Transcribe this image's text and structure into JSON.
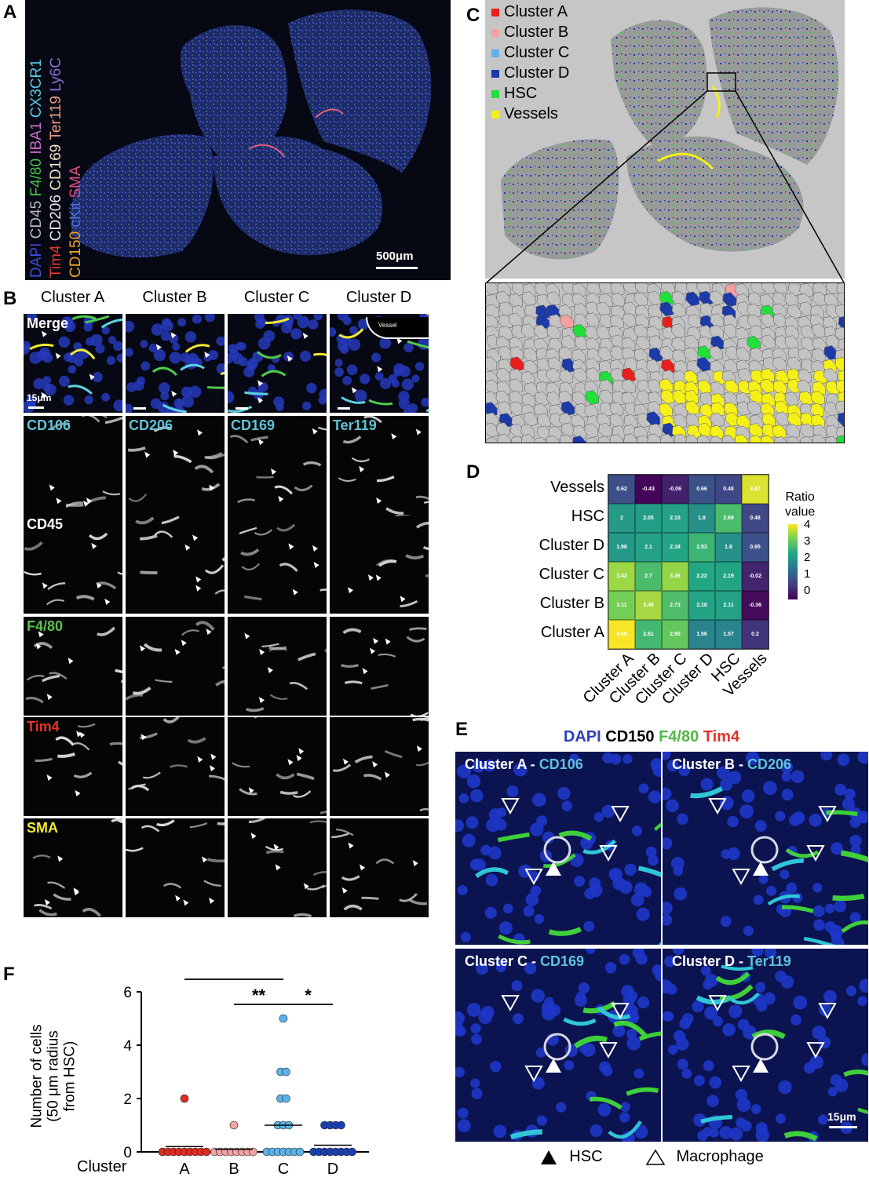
{
  "panel_a": {
    "label": "A",
    "marker_lines": [
      [
        {
          "t": "DAPI ",
          "c": "#3d4fd6"
        },
        {
          "t": "CD45 ",
          "c": "#b9b9b9"
        },
        {
          "t": "F4/80 ",
          "c": "#4fbf4a"
        },
        {
          "t": "IBA1 ",
          "c": "#d06bc9"
        },
        {
          "t": "CX3CR1",
          "c": "#5ac8e0"
        }
      ],
      [
        {
          "t": "Tim4 ",
          "c": "#e23a2c"
        },
        {
          "t": "CD206 ",
          "c": "#e8e8e8"
        },
        {
          "t": "CD169 ",
          "c": "#f0e3c0"
        },
        {
          "t": "Ter119 ",
          "c": "#f0a07c"
        },
        {
          "t": "Ly6C",
          "c": "#8a6fd0"
        }
      ],
      [
        {
          "t": "CD150 ",
          "c": "#f0a42a"
        },
        {
          "t": "cKit ",
          "c": "#4a6fd8"
        },
        {
          "t": "SMA",
          "c": "#e05080"
        }
      ]
    ],
    "scale": "500μm"
  },
  "panel_b": {
    "label": "B",
    "columns": [
      "Cluster A",
      "Cluster B",
      "Cluster C",
      "Cluster D"
    ],
    "rows": [
      {
        "labels": [
          "Merge",
          "",
          "",
          ""
        ],
        "color": "#ffffff"
      },
      {
        "labels": [
          "CD106",
          "CD206",
          "CD169",
          "Ter119"
        ],
        "color": "#5fc3d8"
      },
      {
        "labels": [
          "CD45",
          "",
          "",
          ""
        ],
        "color": "#ffffff"
      },
      {
        "labels": [
          "F4/80",
          "",
          "",
          ""
        ],
        "color": "#5cc14e"
      },
      {
        "labels": [
          "Tim4",
          "",
          "",
          ""
        ],
        "color": "#e2332a"
      },
      {
        "labels": [
          "SMA",
          "",
          "",
          ""
        ],
        "color": "#f2ea2e"
      }
    ],
    "scale": "15μm",
    "vessel_label": "Vessel"
  },
  "panel_c": {
    "label": "C",
    "legend": [
      {
        "name": "Cluster A",
        "color": "#e8201c"
      },
      {
        "name": "Cluster B",
        "color": "#f2a0a0"
      },
      {
        "name": "Cluster C",
        "color": "#5fb2ea"
      },
      {
        "name": "Cluster D",
        "color": "#1c3aa8"
      },
      {
        "name": "HSC",
        "color": "#22e03a"
      },
      {
        "name": "Vessels",
        "color": "#f5f01a"
      }
    ]
  },
  "panel_d": {
    "label": "D",
    "legend_title_1": "Ratio",
    "legend_title_2": "value",
    "colorbar_ticks": [
      "4",
      "3",
      "2",
      "1",
      "0"
    ],
    "rows": [
      "Vessels",
      "HSC",
      "Cluster D",
      "Cluster C",
      "Cluster B",
      "Cluster A"
    ],
    "cols": [
      "Cluster A",
      "Cluster B",
      "Cluster C",
      "Cluster D",
      "HSC",
      "Vessels"
    ]
  },
  "chart_data": [
    {
      "type": "heatmap",
      "title": "",
      "rows": [
        "Vessels",
        "HSC",
        "Cluster D",
        "Cluster C",
        "Cluster B",
        "Cluster A"
      ],
      "columns": [
        "Cluster A",
        "Cluster B",
        "Cluster C",
        "Cluster D",
        "HSC",
        "Vessels"
      ],
      "values": [
        [
          0.62,
          -0.43,
          -0.06,
          0.66,
          0.48,
          3.87
        ],
        [
          2,
          2.05,
          2.15,
          1.8,
          2.69,
          0.48
        ],
        [
          1.98,
          2.1,
          2.18,
          2.53,
          1.8,
          0.65
        ],
        [
          3.42,
          2.7,
          3.36,
          2.22,
          2.19,
          -0.02
        ],
        [
          3.11,
          3.48,
          2.73,
          2.18,
          2.11,
          -0.36
        ],
        [
          4.06,
          2.61,
          2.95,
          1.56,
          1.57,
          0.2
        ]
      ],
      "colorscale": "viridis",
      "range": [
        -0.5,
        4.1
      ],
      "legend_title": "Ratio value"
    },
    {
      "type": "scatter",
      "xlabel": "Cluster",
      "ylabel": "Number of cells (50 μm radius from HSC)",
      "ylim": [
        0,
        6
      ],
      "yticks": [
        0,
        2,
        4,
        6
      ],
      "categories": [
        "A",
        "B",
        "C",
        "D"
      ],
      "series": [
        {
          "category": "A",
          "color": "#e02a1e",
          "points": [
            2,
            0,
            0,
            0,
            0,
            0,
            0,
            0,
            0,
            0
          ],
          "mean": 0.2
        },
        {
          "category": "B",
          "color": "#f2a3a3",
          "points": [
            1,
            0,
            0,
            0,
            0,
            0,
            0,
            0,
            0
          ],
          "mean": 0.1
        },
        {
          "category": "C",
          "color": "#5ab4ea",
          "points": [
            5,
            3,
            3,
            2,
            2,
            1,
            1,
            1,
            0,
            0,
            0,
            0,
            0,
            0,
            0
          ],
          "mean": 1.0
        },
        {
          "category": "D",
          "color": "#1a3fb0",
          "points": [
            1,
            1,
            1,
            1,
            0,
            0,
            0,
            0,
            0,
            0,
            0,
            0
          ],
          "mean": 0.25
        }
      ],
      "significance": [
        {
          "pair": [
            "A",
            "C"
          ],
          "label": "*"
        },
        {
          "pair": [
            "B",
            "C"
          ],
          "label": "**"
        },
        {
          "pair": [
            "C",
            "D"
          ],
          "label": "*"
        }
      ]
    }
  ],
  "panel_e": {
    "label": "E",
    "header": [
      {
        "t": "DAPI ",
        "c": "#2f3fb8"
      },
      {
        "t": "CD150 ",
        "c": "#000000"
      },
      {
        "t": "F4/80 ",
        "c": "#4fb846"
      },
      {
        "t": "Tim4",
        "c": "#e2332a"
      }
    ],
    "tiles": [
      {
        "prefix": "Cluster A - ",
        "marker": "CD106"
      },
      {
        "prefix": "Cluster B - ",
        "marker": "CD206"
      },
      {
        "prefix": "Cluster C - ",
        "marker": "CD169"
      },
      {
        "prefix": "Cluster D - ",
        "marker": "Ter119"
      }
    ],
    "marker_color": "#5fc3d8",
    "scale": "15μm",
    "legend_hsc": "HSC",
    "legend_macrophage": "Macrophage"
  },
  "panel_f": {
    "label": "F",
    "ylabel_lines": [
      "Number of cells",
      "(50 μm radius",
      "from HSC)"
    ],
    "xlabel": "Cluster"
  }
}
